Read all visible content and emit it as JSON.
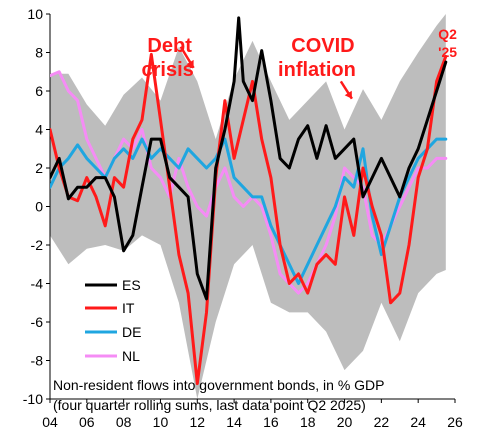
{
  "chart_data": {
    "type": "line",
    "title": "",
    "xlabel": "",
    "ylabel": "",
    "xlim": [
      2004,
      2026
    ],
    "ylim": [
      -10,
      10
    ],
    "x_ticks": [
      2004,
      2006,
      2008,
      2010,
      2012,
      2014,
      2016,
      2018,
      2020,
      2022,
      2024,
      2026
    ],
    "x_tick_labels": [
      "04",
      "06",
      "08",
      "10",
      "12",
      "14",
      "16",
      "18",
      "20",
      "22",
      "24",
      "26"
    ],
    "y_ticks": [
      -10,
      -8,
      -6,
      -4,
      -2,
      0,
      2,
      4,
      6,
      8,
      10
    ],
    "y_tick_labels": [
      "-10",
      "-8",
      "-6",
      "-4",
      "-2",
      "0",
      "2",
      "4",
      "6",
      "8",
      "10"
    ],
    "grid": false,
    "legend_position": "bottom-left",
    "notes": [
      "Non-resident flows into government bonds, in % GDP",
      "(four quarter rolling sums, last data point Q2 2025)"
    ],
    "annotations": [
      {
        "text_lines": [
          "Debt",
          "crisis"
        ],
        "x": 2010.5,
        "y": 7.5
      },
      {
        "text_lines": [
          "COVID",
          "inflation"
        ],
        "x": 2018.5,
        "y": 7.4
      },
      {
        "text_lines": [
          "Q2",
          "'25"
        ],
        "x": 2025.6,
        "y": 8.8
      }
    ],
    "band": {
      "color": "#bdbdbd",
      "x": [
        2004.0,
        2005.0,
        2006.0,
        2007.0,
        2008.0,
        2009.0,
        2010.0,
        2011.0,
        2012.0,
        2013.0,
        2014.0,
        2015.0,
        2016.0,
        2017.0,
        2018.0,
        2019.0,
        2020.0,
        2021.0,
        2022.0,
        2023.0,
        2024.0,
        2025.0,
        2025.5
      ],
      "upper": [
        6.9,
        6.9,
        5.3,
        4.2,
        5.8,
        6.7,
        5.5,
        8.3,
        6.5,
        3.5,
        6.6,
        8.6,
        6.5,
        4.5,
        5.5,
        6.5,
        4.0,
        6.1,
        4.5,
        6.5,
        8.0,
        9.4,
        10.0
      ],
      "lower": [
        -1.5,
        -3.0,
        -2.2,
        -2.0,
        -2.3,
        -1.5,
        -2.0,
        -5.0,
        -10.0,
        -6.0,
        -3.0,
        -2.0,
        -5.0,
        -5.5,
        -5.5,
        -6.5,
        -8.5,
        -7.5,
        -5.0,
        -7.0,
        -4.5,
        -3.5,
        -3.3
      ]
    },
    "series": [
      {
        "name": "ES",
        "color": "#000000",
        "x": [
          2004.0,
          2004.5,
          2005.0,
          2005.5,
          2006.0,
          2006.5,
          2007.0,
          2007.5,
          2008.0,
          2008.5,
          2009.0,
          2009.5,
          2010.0,
          2010.5,
          2011.0,
          2011.5,
          2012.0,
          2012.5,
          2013.0,
          2013.5,
          2014.0,
          2014.25,
          2014.5,
          2015.0,
          2015.5,
          2016.0,
          2016.5,
          2017.0,
          2017.5,
          2018.0,
          2018.5,
          2019.0,
          2019.5,
          2020.0,
          2020.5,
          2021.0,
          2021.5,
          2022.0,
          2022.5,
          2023.0,
          2023.5,
          2024.0,
          2024.5,
          2025.0,
          2025.5
        ],
        "values": [
          1.5,
          2.5,
          0.4,
          1.0,
          1.0,
          1.5,
          1.5,
          0.5,
          -2.3,
          -1.5,
          1.0,
          3.5,
          3.5,
          1.5,
          1.0,
          0.5,
          -3.5,
          -4.8,
          2.0,
          4.0,
          6.5,
          9.8,
          6.5,
          5.5,
          8.1,
          5.5,
          2.5,
          2.0,
          3.5,
          4.2,
          2.5,
          4.2,
          2.5,
          3.0,
          3.5,
          0.5,
          1.5,
          2.5,
          1.5,
          0.5,
          2.0,
          3.0,
          4.5,
          6.0,
          7.5
        ]
      },
      {
        "name": "IT",
        "color": "#ff1a1a",
        "x": [
          2004.0,
          2004.5,
          2005.0,
          2005.5,
          2006.0,
          2006.5,
          2007.0,
          2007.5,
          2008.0,
          2008.5,
          2009.0,
          2009.5,
          2010.0,
          2010.5,
          2011.0,
          2011.5,
          2012.0,
          2012.5,
          2013.0,
          2013.5,
          2014.0,
          2014.5,
          2015.0,
          2015.5,
          2016.0,
          2016.5,
          2017.0,
          2017.5,
          2018.0,
          2018.5,
          2019.0,
          2019.5,
          2020.0,
          2020.5,
          2021.0,
          2021.5,
          2022.0,
          2022.5,
          2023.0,
          2023.5,
          2024.0,
          2024.5,
          2025.0,
          2025.5
        ],
        "values": [
          4.0,
          2.0,
          0.5,
          0.3,
          1.5,
          0.5,
          -1.0,
          1.5,
          1.0,
          3.5,
          4.5,
          7.9,
          4.5,
          1.0,
          -2.5,
          -4.5,
          -9.2,
          -5.5,
          1.5,
          5.5,
          2.5,
          4.5,
          6.5,
          3.5,
          1.5,
          -2.0,
          -4.0,
          -3.5,
          -4.5,
          -3.0,
          -2.5,
          -3.0,
          0.5,
          -1.5,
          2.0,
          0.0,
          -1.5,
          -5.0,
          -4.5,
          -2.0,
          1.5,
          3.0,
          6.5,
          7.8
        ]
      },
      {
        "name": "DE",
        "color": "#1fa6e0",
        "x": [
          2004.0,
          2004.5,
          2005.0,
          2005.5,
          2006.0,
          2006.5,
          2007.0,
          2007.5,
          2008.0,
          2008.5,
          2009.0,
          2009.5,
          2010.0,
          2010.5,
          2011.0,
          2011.5,
          2012.0,
          2012.5,
          2013.0,
          2013.5,
          2014.0,
          2014.5,
          2015.0,
          2015.5,
          2016.0,
          2016.5,
          2017.0,
          2017.5,
          2018.0,
          2018.5,
          2019.0,
          2019.5,
          2020.0,
          2020.5,
          2021.0,
          2021.5,
          2022.0,
          2022.5,
          2023.0,
          2023.5,
          2024.0,
          2024.5,
          2025.0,
          2025.5
        ],
        "values": [
          1.0,
          2.0,
          2.5,
          3.2,
          2.5,
          2.0,
          1.5,
          2.5,
          3.0,
          2.5,
          3.5,
          2.5,
          3.0,
          2.5,
          2.0,
          3.0,
          2.5,
          2.0,
          2.5,
          3.5,
          1.5,
          1.0,
          0.5,
          0.5,
          -1.0,
          -2.0,
          -3.0,
          -4.0,
          -3.0,
          -2.0,
          -1.0,
          0.0,
          1.5,
          1.0,
          3.0,
          -0.5,
          -2.5,
          -1.0,
          0.5,
          1.5,
          2.5,
          3.0,
          3.5,
          3.5
        ]
      },
      {
        "name": "NL",
        "color": "#f58cf5",
        "x": [
          2004.0,
          2004.5,
          2005.0,
          2005.5,
          2006.0,
          2006.5,
          2007.0,
          2007.5,
          2008.0,
          2008.5,
          2009.0,
          2009.5,
          2010.0,
          2010.5,
          2011.0,
          2011.5,
          2012.0,
          2012.5,
          2013.0,
          2013.5,
          2014.0,
          2014.5,
          2015.0,
          2015.5,
          2016.0,
          2016.5,
          2017.0,
          2017.5,
          2018.0,
          2018.5,
          2019.0,
          2019.5,
          2020.0,
          2020.5,
          2021.0,
          2021.5,
          2022.0,
          2022.5,
          2023.0,
          2023.5,
          2024.0,
          2024.5,
          2025.0,
          2025.5
        ],
        "values": [
          6.8,
          7.0,
          6.0,
          5.5,
          3.5,
          2.5,
          1.5,
          2.5,
          3.5,
          3.0,
          4.0,
          2.0,
          1.5,
          0.5,
          2.5,
          1.0,
          0.0,
          -0.5,
          1.0,
          2.0,
          0.5,
          0.0,
          0.5,
          0.0,
          -1.5,
          -3.5,
          -4.0,
          -4.5,
          -4.0,
          -3.0,
          -2.0,
          -0.5,
          2.0,
          1.5,
          1.0,
          -1.5,
          -2.0,
          -1.0,
          0.0,
          1.0,
          2.0,
          2.0,
          2.5,
          2.5
        ]
      }
    ]
  }
}
